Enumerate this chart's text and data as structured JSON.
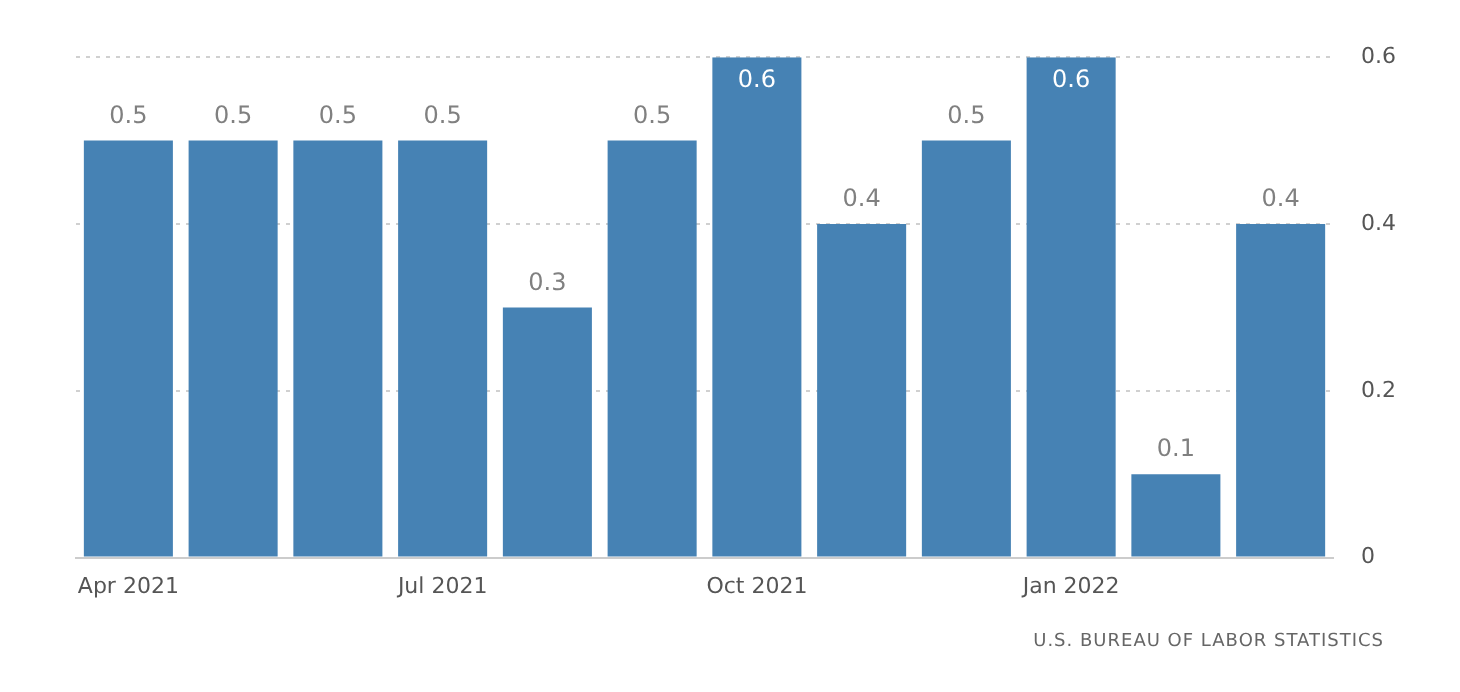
{
  "chart_data": {
    "type": "bar",
    "categories": [
      "Apr 2021",
      null,
      null,
      "Jul 2021",
      null,
      null,
      "Oct 2021",
      null,
      null,
      "Jan 2022",
      null,
      null
    ],
    "values": [
      0.5,
      0.5,
      0.5,
      0.5,
      0.3,
      0.5,
      0.6,
      0.4,
      0.5,
      0.6,
      0.1,
      0.4
    ],
    "color": "#4682b4",
    "ylim": [
      0,
      0.6
    ],
    "yticks": [
      0,
      0.2,
      0.4,
      0.6
    ],
    "grid": "y",
    "data_labels": true,
    "annotations": [
      "U.S. BUREAU OF LABOR STATISTICS"
    ]
  }
}
